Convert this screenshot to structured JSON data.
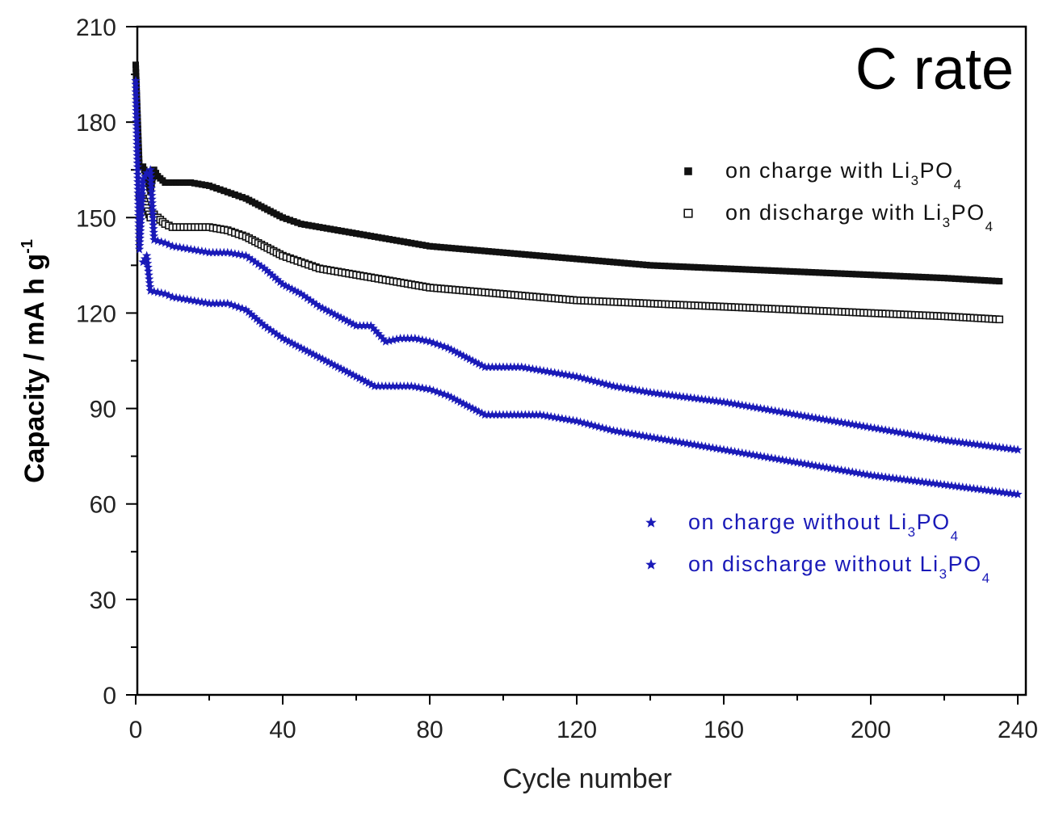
{
  "chart_data": {
    "type": "scatter",
    "title": "C rate",
    "xlabel": "Cycle number",
    "ylabel_main": "Capacity / mA h g",
    "ylabel_sup": "-1",
    "xlim": [
      0,
      240
    ],
    "ylim": [
      0,
      210
    ],
    "xticks": [
      0,
      40,
      80,
      120,
      160,
      200,
      240
    ],
    "yticks": [
      0,
      30,
      60,
      90,
      120,
      150,
      180,
      210
    ],
    "grid": false,
    "legend_placement": "right",
    "series": [
      {
        "name_parts": [
          "on charge with Li",
          "3",
          "PO",
          "4"
        ],
        "marker": "filled-square",
        "color": "#111111",
        "points": [
          [
            0,
            198
          ],
          [
            1,
            166
          ],
          [
            2,
            166
          ],
          [
            3,
            163
          ],
          [
            4,
            158
          ],
          [
            5,
            165
          ],
          [
            6,
            163
          ],
          [
            8,
            161
          ],
          [
            10,
            161
          ],
          [
            15,
            161
          ],
          [
            20,
            160
          ],
          [
            25,
            158
          ],
          [
            30,
            156
          ],
          [
            35,
            153
          ],
          [
            40,
            150
          ],
          [
            45,
            148
          ],
          [
            50,
            147
          ],
          [
            60,
            145
          ],
          [
            70,
            143
          ],
          [
            80,
            141
          ],
          [
            90,
            140
          ],
          [
            100,
            139
          ],
          [
            110,
            138
          ],
          [
            120,
            137
          ],
          [
            140,
            135
          ],
          [
            160,
            134
          ],
          [
            180,
            133
          ],
          [
            200,
            132
          ],
          [
            220,
            131
          ],
          [
            235,
            130
          ]
        ]
      },
      {
        "name_parts": [
          "on discharge with Li",
          "3",
          "PO",
          "4"
        ],
        "marker": "open-square",
        "color": "#111111",
        "points": [
          [
            1,
            157
          ],
          [
            2,
            156
          ],
          [
            3,
            153
          ],
          [
            4,
            150
          ],
          [
            5,
            151
          ],
          [
            6,
            150
          ],
          [
            8,
            148
          ],
          [
            10,
            147
          ],
          [
            15,
            147
          ],
          [
            20,
            147
          ],
          [
            25,
            146
          ],
          [
            30,
            144
          ],
          [
            35,
            141
          ],
          [
            40,
            138
          ],
          [
            45,
            136
          ],
          [
            50,
            134
          ],
          [
            60,
            132
          ],
          [
            70,
            130
          ],
          [
            80,
            128
          ],
          [
            90,
            127
          ],
          [
            100,
            126
          ],
          [
            110,
            125
          ],
          [
            120,
            124
          ],
          [
            140,
            123
          ],
          [
            160,
            122
          ],
          [
            180,
            121
          ],
          [
            200,
            120
          ],
          [
            220,
            119
          ],
          [
            235,
            118
          ]
        ]
      },
      {
        "name_parts": [
          "on charge without Li",
          "3",
          "PO",
          "4"
        ],
        "marker": "star",
        "color": "#1a1ab8",
        "points": [
          [
            0,
            193
          ],
          [
            1,
            140
          ],
          [
            2,
            162
          ],
          [
            3,
            164
          ],
          [
            4,
            165
          ],
          [
            5,
            143
          ],
          [
            8,
            142
          ],
          [
            10,
            141
          ],
          [
            15,
            140
          ],
          [
            20,
            139
          ],
          [
            25,
            139
          ],
          [
            30,
            138
          ],
          [
            35,
            134
          ],
          [
            40,
            129
          ],
          [
            45,
            126
          ],
          [
            50,
            122
          ],
          [
            55,
            119
          ],
          [
            60,
            116
          ],
          [
            64,
            116
          ],
          [
            68,
            111
          ],
          [
            72,
            112
          ],
          [
            76,
            112
          ],
          [
            80,
            111
          ],
          [
            85,
            109
          ],
          [
            90,
            106
          ],
          [
            95,
            103
          ],
          [
            100,
            103
          ],
          [
            105,
            103
          ],
          [
            110,
            102
          ],
          [
            120,
            100
          ],
          [
            130,
            97
          ],
          [
            140,
            95
          ],
          [
            160,
            92
          ],
          [
            180,
            88
          ],
          [
            200,
            84
          ],
          [
            220,
            80
          ],
          [
            240,
            77
          ]
        ]
      },
      {
        "name_parts": [
          "on discharge without Li",
          "3",
          "PO",
          "4"
        ],
        "marker": "star",
        "color": "#1a1ab8",
        "points": [
          [
            2,
            136
          ],
          [
            3,
            138
          ],
          [
            4,
            127
          ],
          [
            8,
            126
          ],
          [
            10,
            125
          ],
          [
            15,
            124
          ],
          [
            20,
            123
          ],
          [
            25,
            123
          ],
          [
            30,
            121
          ],
          [
            35,
            116
          ],
          [
            40,
            112
          ],
          [
            45,
            109
          ],
          [
            50,
            106
          ],
          [
            55,
            103
          ],
          [
            60,
            100
          ],
          [
            65,
            97
          ],
          [
            70,
            97
          ],
          [
            75,
            97
          ],
          [
            80,
            96
          ],
          [
            85,
            94
          ],
          [
            90,
            91
          ],
          [
            95,
            88
          ],
          [
            100,
            88
          ],
          [
            105,
            88
          ],
          [
            110,
            88
          ],
          [
            120,
            86
          ],
          [
            130,
            83
          ],
          [
            140,
            81
          ],
          [
            160,
            77
          ],
          [
            180,
            73
          ],
          [
            200,
            69
          ],
          [
            220,
            66
          ],
          [
            240,
            63
          ]
        ]
      }
    ]
  }
}
